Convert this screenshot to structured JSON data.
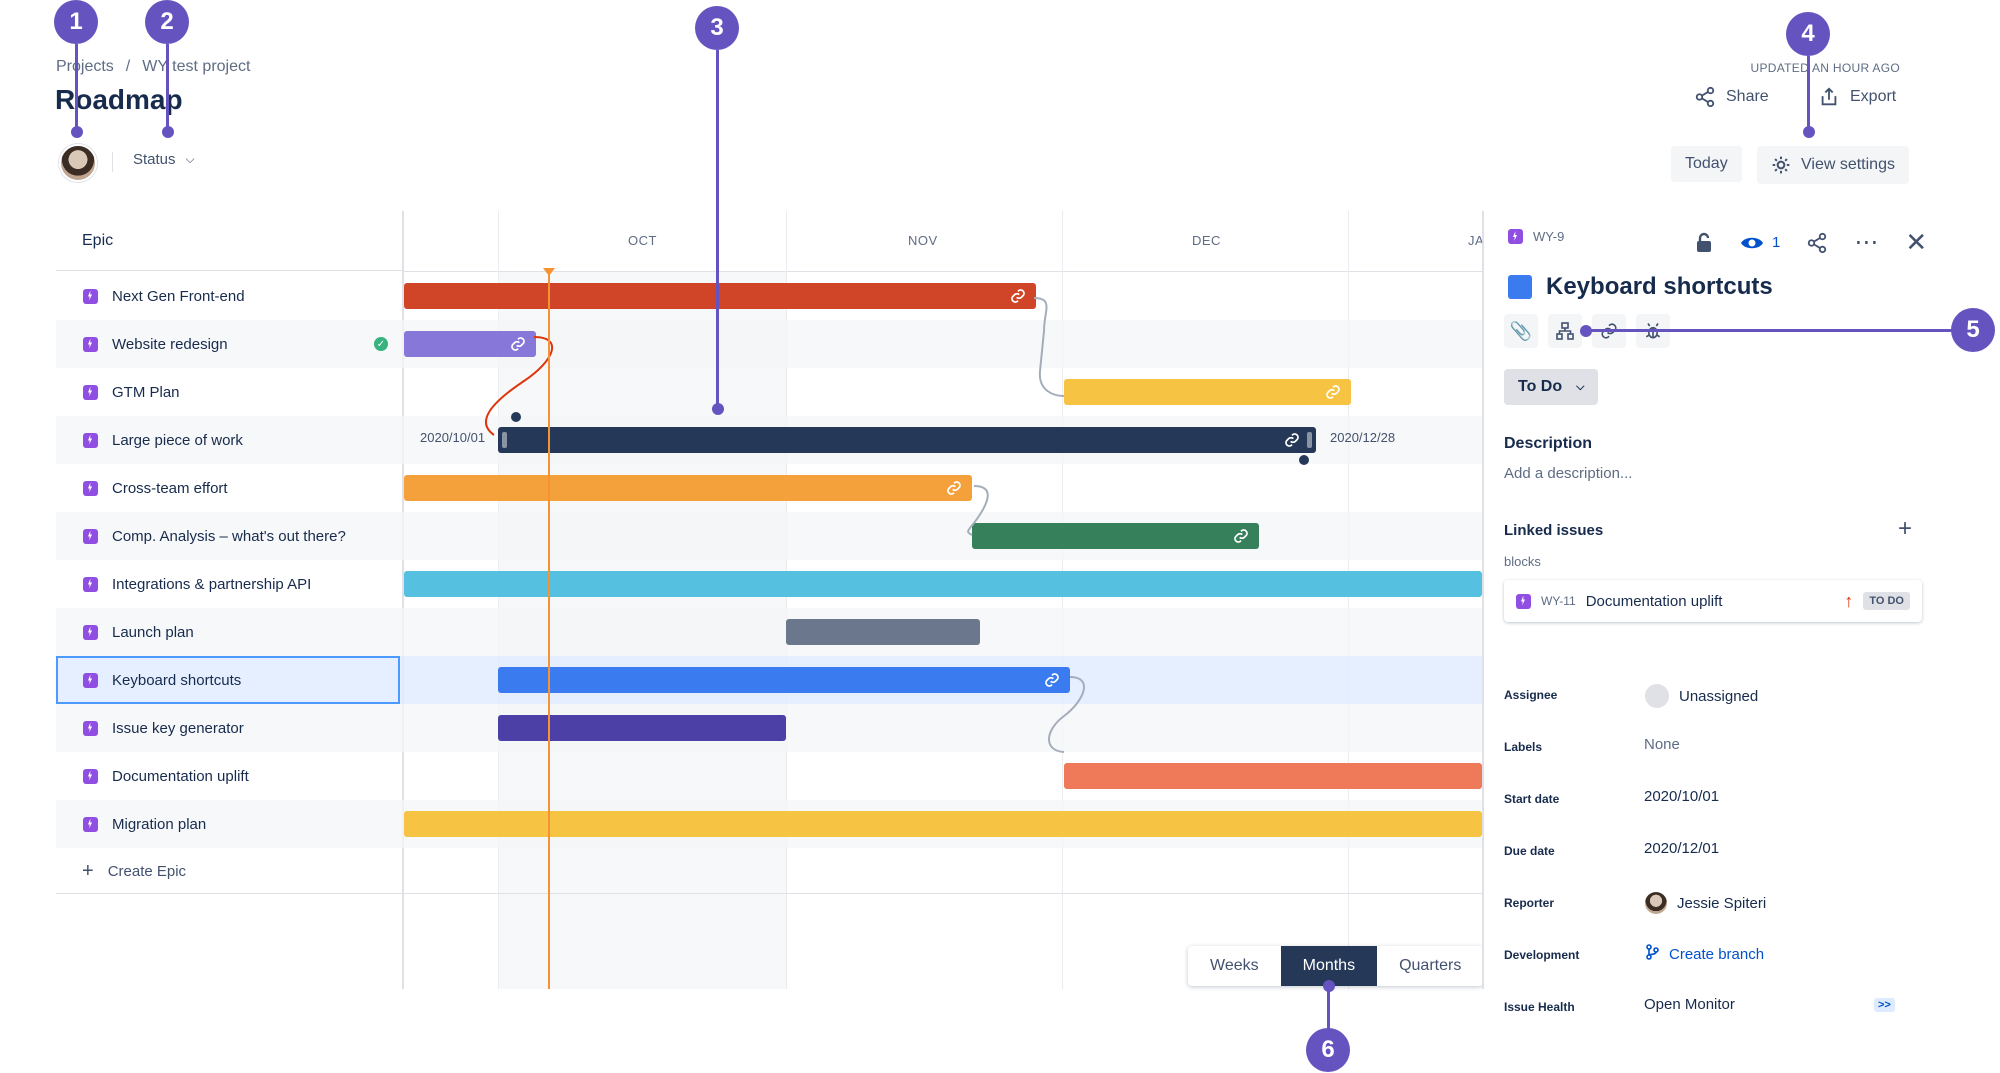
{
  "breadcrumb": {
    "project_root": "Projects",
    "sep": "/",
    "project": "WY test project"
  },
  "page": {
    "title": "Roadmap",
    "updated": "UPDATED AN HOUR AGO"
  },
  "actions": {
    "share": "Share",
    "export": "Export",
    "today": "Today",
    "view_settings": "View settings"
  },
  "filters": {
    "status": "Status"
  },
  "grid": {
    "header": "Epic",
    "months": [
      "OCT",
      "NOV",
      "DEC",
      "JA"
    ],
    "create_epic": "Create Epic",
    "date_start": "2020/10/01",
    "date_end": "2020/12/28"
  },
  "epics": [
    {
      "name": "Next Gen Front-end",
      "color": "#d04427"
    },
    {
      "name": "Website redesign",
      "color": "#8777d9",
      "done": true
    },
    {
      "name": "GTM Plan",
      "color": "#f6c342"
    },
    {
      "name": "Large piece of work",
      "color": "#253858"
    },
    {
      "name": "Cross-team effort",
      "color": "#f4a03b"
    },
    {
      "name": "Comp. Analysis – what's out there?",
      "color": "#36805c"
    },
    {
      "name": "Integrations & partnership API",
      "color": "#56c0e0"
    },
    {
      "name": "Launch plan",
      "color": "#6b778c"
    },
    {
      "name": "Keyboard shortcuts",
      "color": "#3a7bef",
      "selected": true
    },
    {
      "name": "Issue key generator",
      "color": "#4c3fa5"
    },
    {
      "name": "Documentation uplift",
      "color": "#ef7a5a"
    },
    {
      "name": "Migration plan",
      "color": "#f6c342"
    }
  ],
  "scale": {
    "options": [
      "Weeks",
      "Months",
      "Quarters"
    ],
    "active": "Months"
  },
  "panel": {
    "key": "WY-9",
    "watchers": "1",
    "title": "Keyboard shortcuts",
    "status": "To Do",
    "description_label": "Description",
    "description_placeholder": "Add a description...",
    "linked_label": "Linked issues",
    "link_type": "blocks",
    "linked_issue": {
      "key": "WY-11",
      "summary": "Documentation uplift",
      "status": "TO DO"
    },
    "fields": {
      "assignee_label": "Assignee",
      "assignee": "Unassigned",
      "labels_label": "Labels",
      "labels": "None",
      "start_label": "Start date",
      "start": "2020/10/01",
      "due_label": "Due date",
      "due": "2020/12/01",
      "reporter_label": "Reporter",
      "reporter": "Jessie Spiteri",
      "dev_label": "Development",
      "dev": "Create branch",
      "health_label": "Issue Health",
      "health": "Open Monitor",
      "health_more": ">>"
    }
  },
  "callouts": [
    "1",
    "2",
    "3",
    "4",
    "5",
    "6"
  ]
}
